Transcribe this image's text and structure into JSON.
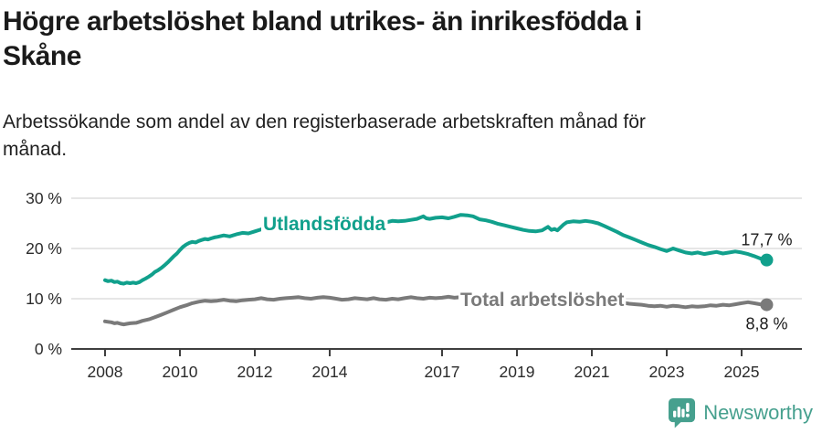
{
  "header": {
    "title_lines": [
      "Högre arbetslöshet bland utrikes- än inrikesfödda i",
      "Skåne"
    ],
    "subtitle_lines": [
      "Arbetssökande som andel av den registerbaserade arbetskraften månad för",
      "månad."
    ]
  },
  "chart_data": {
    "type": "line",
    "title": "Högre arbetslöshet bland utrikes- än inrikesfödda i Skåne",
    "subtitle": "Arbetssökande som andel av den registerbaserade arbetskraften månad för månad.",
    "unit": "%",
    "x_axis": {
      "tick_values": [
        2008,
        2010,
        2012,
        2014,
        2017,
        2019,
        2021,
        2023,
        2025
      ],
      "range": [
        2008,
        2025.67
      ]
    },
    "y_axis": {
      "tick_values": [
        0,
        10,
        20,
        30
      ],
      "tick_labels": [
        "0 %",
        "10 %",
        "20 %",
        "30 %"
      ],
      "range": [
        0,
        30
      ],
      "gridlines": true
    },
    "style": {
      "grid_color": "#DEDEDE",
      "axis_color": "#3F3F3F",
      "axis_text_color": "#2B2B2B",
      "annotation_color": "#1A1A1A",
      "label_mask_color": "#FFFFFF"
    },
    "legend_position": "inline-labels",
    "series": [
      {
        "name": "Utlandsfödda",
        "color": "#11A08C",
        "end_label": "17,7 %",
        "end_value": 17.7,
        "points": [
          [
            2008.0,
            13.7
          ],
          [
            2008.08,
            13.5
          ],
          [
            2008.17,
            13.6
          ],
          [
            2008.25,
            13.3
          ],
          [
            2008.33,
            13.4
          ],
          [
            2008.42,
            13.1
          ],
          [
            2008.5,
            13.0
          ],
          [
            2008.58,
            13.2
          ],
          [
            2008.67,
            13.1
          ],
          [
            2008.75,
            13.2
          ],
          [
            2008.83,
            13.1
          ],
          [
            2008.92,
            13.3
          ],
          [
            2009.0,
            13.7
          ],
          [
            2009.08,
            14.0
          ],
          [
            2009.17,
            14.4
          ],
          [
            2009.25,
            14.8
          ],
          [
            2009.33,
            15.3
          ],
          [
            2009.42,
            15.7
          ],
          [
            2009.5,
            16.1
          ],
          [
            2009.58,
            16.6
          ],
          [
            2009.67,
            17.2
          ],
          [
            2009.75,
            17.8
          ],
          [
            2009.83,
            18.4
          ],
          [
            2009.92,
            19.0
          ],
          [
            2010.0,
            19.7
          ],
          [
            2010.08,
            20.3
          ],
          [
            2010.17,
            20.8
          ],
          [
            2010.25,
            21.1
          ],
          [
            2010.33,
            21.3
          ],
          [
            2010.42,
            21.2
          ],
          [
            2010.5,
            21.5
          ],
          [
            2010.58,
            21.7
          ],
          [
            2010.67,
            21.9
          ],
          [
            2010.75,
            21.8
          ],
          [
            2010.83,
            22.0
          ],
          [
            2010.92,
            22.2
          ],
          [
            2011.0,
            22.3
          ],
          [
            2011.17,
            22.6
          ],
          [
            2011.33,
            22.4
          ],
          [
            2011.5,
            22.8
          ],
          [
            2011.67,
            23.1
          ],
          [
            2011.83,
            23.0
          ],
          [
            2012.0,
            23.4
          ],
          [
            2012.17,
            23.8
          ],
          [
            2012.33,
            24.3
          ],
          [
            2012.42,
            23.9
          ],
          [
            2012.5,
            23.7
          ],
          [
            2012.67,
            23.9
          ],
          [
            2012.83,
            24.1
          ],
          [
            2013.0,
            24.0
          ],
          [
            2013.17,
            24.2
          ],
          [
            2013.33,
            24.4
          ],
          [
            2013.5,
            24.2
          ],
          [
            2013.67,
            24.4
          ],
          [
            2013.83,
            24.6
          ],
          [
            2014.0,
            24.3
          ],
          [
            2014.17,
            24.5
          ],
          [
            2014.33,
            24.7
          ],
          [
            2014.5,
            24.9
          ],
          [
            2014.67,
            24.7
          ],
          [
            2014.83,
            25.0
          ],
          [
            2015.0,
            24.9
          ],
          [
            2015.17,
            25.2
          ],
          [
            2015.33,
            25.4
          ],
          [
            2015.5,
            25.2
          ],
          [
            2015.67,
            25.5
          ],
          [
            2015.83,
            25.4
          ],
          [
            2016.0,
            25.5
          ],
          [
            2016.17,
            25.7
          ],
          [
            2016.33,
            25.9
          ],
          [
            2016.5,
            26.4
          ],
          [
            2016.58,
            26.0
          ],
          [
            2016.67,
            25.9
          ],
          [
            2016.83,
            26.1
          ],
          [
            2017.0,
            26.2
          ],
          [
            2017.17,
            26.0
          ],
          [
            2017.33,
            26.3
          ],
          [
            2017.5,
            26.7
          ],
          [
            2017.67,
            26.6
          ],
          [
            2017.83,
            26.4
          ],
          [
            2018.0,
            25.8
          ],
          [
            2018.17,
            25.6
          ],
          [
            2018.33,
            25.3
          ],
          [
            2018.5,
            24.9
          ],
          [
            2018.67,
            24.6
          ],
          [
            2018.83,
            24.3
          ],
          [
            2019.0,
            24.0
          ],
          [
            2019.17,
            23.7
          ],
          [
            2019.33,
            23.5
          ],
          [
            2019.5,
            23.4
          ],
          [
            2019.67,
            23.6
          ],
          [
            2019.83,
            24.3
          ],
          [
            2019.92,
            23.7
          ],
          [
            2020.0,
            23.9
          ],
          [
            2020.08,
            23.6
          ],
          [
            2020.25,
            24.8
          ],
          [
            2020.33,
            25.2
          ],
          [
            2020.5,
            25.4
          ],
          [
            2020.67,
            25.3
          ],
          [
            2020.83,
            25.5
          ],
          [
            2021.0,
            25.3
          ],
          [
            2021.17,
            25.0
          ],
          [
            2021.33,
            24.5
          ],
          [
            2021.5,
            23.9
          ],
          [
            2021.67,
            23.3
          ],
          [
            2021.83,
            22.7
          ],
          [
            2022.0,
            22.2
          ],
          [
            2022.17,
            21.7
          ],
          [
            2022.33,
            21.2
          ],
          [
            2022.5,
            20.7
          ],
          [
            2022.67,
            20.3
          ],
          [
            2022.83,
            19.9
          ],
          [
            2023.0,
            19.5
          ],
          [
            2023.17,
            20.0
          ],
          [
            2023.33,
            19.6
          ],
          [
            2023.5,
            19.2
          ],
          [
            2023.67,
            19.0
          ],
          [
            2023.83,
            19.2
          ],
          [
            2024.0,
            18.9
          ],
          [
            2024.17,
            19.1
          ],
          [
            2024.33,
            19.3
          ],
          [
            2024.5,
            19.0
          ],
          [
            2024.67,
            19.2
          ],
          [
            2024.83,
            19.4
          ],
          [
            2025.0,
            19.2
          ],
          [
            2025.17,
            18.9
          ],
          [
            2025.33,
            18.5
          ],
          [
            2025.5,
            18.0
          ],
          [
            2025.67,
            17.7
          ]
        ]
      },
      {
        "name": "Total arbetslöshet",
        "color": "#7A7A7A",
        "end_label": "8,8 %",
        "end_value": 8.8,
        "points": [
          [
            2008.0,
            5.5
          ],
          [
            2008.08,
            5.4
          ],
          [
            2008.17,
            5.3
          ],
          [
            2008.25,
            5.1
          ],
          [
            2008.33,
            5.2
          ],
          [
            2008.42,
            5.0
          ],
          [
            2008.5,
            4.9
          ],
          [
            2008.58,
            5.0
          ],
          [
            2008.67,
            5.1
          ],
          [
            2008.83,
            5.2
          ],
          [
            2008.92,
            5.4
          ],
          [
            2009.0,
            5.6
          ],
          [
            2009.17,
            5.9
          ],
          [
            2009.33,
            6.3
          ],
          [
            2009.5,
            6.8
          ],
          [
            2009.67,
            7.3
          ],
          [
            2009.83,
            7.8
          ],
          [
            2010.0,
            8.3
          ],
          [
            2010.17,
            8.7
          ],
          [
            2010.33,
            9.1
          ],
          [
            2010.5,
            9.4
          ],
          [
            2010.67,
            9.6
          ],
          [
            2010.83,
            9.5
          ],
          [
            2011.0,
            9.6
          ],
          [
            2011.17,
            9.8
          ],
          [
            2011.33,
            9.6
          ],
          [
            2011.5,
            9.5
          ],
          [
            2011.67,
            9.7
          ],
          [
            2011.83,
            9.8
          ],
          [
            2012.0,
            9.9
          ],
          [
            2012.17,
            10.1
          ],
          [
            2012.33,
            9.9
          ],
          [
            2012.5,
            9.8
          ],
          [
            2012.67,
            10.0
          ],
          [
            2012.83,
            10.1
          ],
          [
            2013.0,
            10.2
          ],
          [
            2013.17,
            10.3
          ],
          [
            2013.33,
            10.1
          ],
          [
            2013.5,
            10.0
          ],
          [
            2013.67,
            10.2
          ],
          [
            2013.83,
            10.3
          ],
          [
            2014.0,
            10.2
          ],
          [
            2014.17,
            10.0
          ],
          [
            2014.33,
            9.8
          ],
          [
            2014.5,
            9.9
          ],
          [
            2014.67,
            10.1
          ],
          [
            2014.83,
            10.0
          ],
          [
            2015.0,
            9.9
          ],
          [
            2015.17,
            10.1
          ],
          [
            2015.33,
            9.9
          ],
          [
            2015.5,
            9.8
          ],
          [
            2015.67,
            10.0
          ],
          [
            2015.83,
            9.9
          ],
          [
            2016.0,
            10.1
          ],
          [
            2016.17,
            10.3
          ],
          [
            2016.33,
            10.1
          ],
          [
            2016.5,
            10.0
          ],
          [
            2016.67,
            10.2
          ],
          [
            2016.83,
            10.1
          ],
          [
            2017.0,
            10.2
          ],
          [
            2017.17,
            10.4
          ],
          [
            2017.33,
            10.2
          ],
          [
            2017.5,
            10.3
          ],
          [
            2017.67,
            10.1
          ],
          [
            2017.83,
            10.3
          ],
          [
            2018.0,
            10.4
          ],
          [
            2018.17,
            10.2
          ],
          [
            2018.33,
            10.4
          ],
          [
            2018.5,
            10.2
          ],
          [
            2018.67,
            10.1
          ],
          [
            2018.83,
            10.0
          ],
          [
            2019.0,
            9.9
          ],
          [
            2019.17,
            9.8
          ],
          [
            2019.33,
            9.6
          ],
          [
            2019.5,
            9.5
          ],
          [
            2019.67,
            9.4
          ],
          [
            2019.83,
            9.5
          ],
          [
            2020.0,
            9.6
          ],
          [
            2020.17,
            9.5
          ],
          [
            2020.33,
            10.3
          ],
          [
            2020.5,
            10.5
          ],
          [
            2020.67,
            10.3
          ],
          [
            2020.83,
            10.2
          ],
          [
            2021.0,
            10.1
          ],
          [
            2021.17,
            9.9
          ],
          [
            2021.33,
            9.7
          ],
          [
            2021.5,
            9.5
          ],
          [
            2021.67,
            9.3
          ],
          [
            2021.83,
            9.2
          ],
          [
            2022.0,
            9.0
          ],
          [
            2022.17,
            8.9
          ],
          [
            2022.33,
            8.8
          ],
          [
            2022.5,
            8.6
          ],
          [
            2022.67,
            8.5
          ],
          [
            2022.83,
            8.6
          ],
          [
            2023.0,
            8.4
          ],
          [
            2023.17,
            8.6
          ],
          [
            2023.33,
            8.5
          ],
          [
            2023.5,
            8.3
          ],
          [
            2023.67,
            8.5
          ],
          [
            2023.83,
            8.4
          ],
          [
            2024.0,
            8.5
          ],
          [
            2024.17,
            8.7
          ],
          [
            2024.33,
            8.6
          ],
          [
            2024.5,
            8.8
          ],
          [
            2024.67,
            8.7
          ],
          [
            2024.83,
            8.9
          ],
          [
            2025.0,
            9.1
          ],
          [
            2025.17,
            9.3
          ],
          [
            2025.33,
            9.1
          ],
          [
            2025.5,
            8.9
          ],
          [
            2025.67,
            8.8
          ]
        ]
      }
    ]
  },
  "footer": {
    "brand": "Newsworthy",
    "brand_color": "#46A08E",
    "logo_icon": "bar-chart-speech-bubble"
  }
}
